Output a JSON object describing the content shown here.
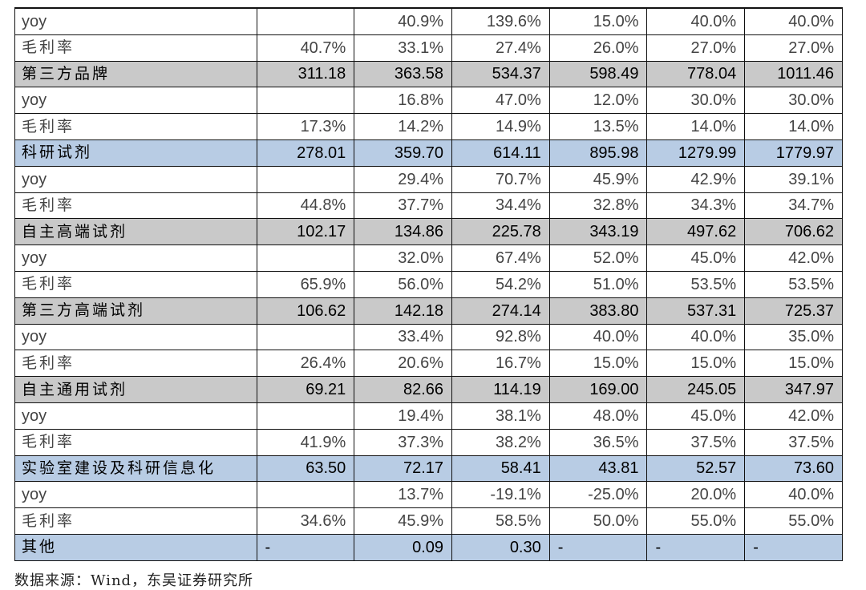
{
  "rows": [
    {
      "type": "sub",
      "label": "yoy",
      "cjk": false,
      "cells": [
        "",
        "40.9%",
        "139.6%",
        "15.0%",
        "40.0%",
        "40.0%"
      ]
    },
    {
      "type": "sub",
      "label": "毛利率",
      "cjk": true,
      "cells": [
        "40.7%",
        "33.1%",
        "27.4%",
        "26.0%",
        "27.0%",
        "27.0%"
      ]
    },
    {
      "type": "cat",
      "style": "gray",
      "label": "第三方品牌",
      "cells": [
        "311.18",
        "363.58",
        "534.37",
        "598.49",
        "778.04",
        "1011.46"
      ]
    },
    {
      "type": "sub",
      "label": "yoy",
      "cjk": false,
      "cells": [
        "",
        "16.8%",
        "47.0%",
        "12.0%",
        "30.0%",
        "30.0%"
      ]
    },
    {
      "type": "sub",
      "label": "毛利率",
      "cjk": true,
      "cells": [
        "17.3%",
        "14.2%",
        "14.9%",
        "13.5%",
        "14.0%",
        "14.0%"
      ]
    },
    {
      "type": "cat",
      "style": "blue",
      "label": "科研试剂",
      "cells": [
        "278.01",
        "359.70",
        "614.11",
        "895.98",
        "1279.99",
        "1779.97"
      ]
    },
    {
      "type": "sub",
      "label": "yoy",
      "cjk": false,
      "cells": [
        "",
        "29.4%",
        "70.7%",
        "45.9%",
        "42.9%",
        "39.1%"
      ]
    },
    {
      "type": "sub",
      "label": "毛利率",
      "cjk": true,
      "cells": [
        "44.8%",
        "37.7%",
        "34.4%",
        "32.8%",
        "34.3%",
        "34.7%"
      ]
    },
    {
      "type": "cat",
      "style": "gray",
      "label": "自主高端试剂",
      "cells": [
        "102.17",
        "134.86",
        "225.78",
        "343.19",
        "497.62",
        "706.62"
      ]
    },
    {
      "type": "sub",
      "label": "yoy",
      "cjk": false,
      "cells": [
        "",
        "32.0%",
        "67.4%",
        "52.0%",
        "45.0%",
        "42.0%"
      ]
    },
    {
      "type": "sub",
      "label": "毛利率",
      "cjk": true,
      "cells": [
        "65.9%",
        "56.0%",
        "54.2%",
        "51.0%",
        "53.5%",
        "53.5%"
      ]
    },
    {
      "type": "cat",
      "style": "gray",
      "label": "第三方高端试剂",
      "cells": [
        "106.62",
        "142.18",
        "274.14",
        "383.80",
        "537.31",
        "725.37"
      ]
    },
    {
      "type": "sub",
      "label": "yoy",
      "cjk": false,
      "cells": [
        "",
        "33.4%",
        "92.8%",
        "40.0%",
        "40.0%",
        "35.0%"
      ]
    },
    {
      "type": "sub",
      "label": "毛利率",
      "cjk": true,
      "cells": [
        "26.4%",
        "20.6%",
        "16.7%",
        "15.0%",
        "15.0%",
        "15.0%"
      ]
    },
    {
      "type": "cat",
      "style": "gray",
      "label": "自主通用试剂",
      "cells": [
        "69.21",
        "82.66",
        "114.19",
        "169.00",
        "245.05",
        "347.97"
      ]
    },
    {
      "type": "sub",
      "label": "yoy",
      "cjk": false,
      "cells": [
        "",
        "19.4%",
        "38.1%",
        "48.0%",
        "45.0%",
        "42.0%"
      ]
    },
    {
      "type": "sub",
      "label": "毛利率",
      "cjk": true,
      "cells": [
        "41.9%",
        "37.3%",
        "38.2%",
        "36.5%",
        "37.5%",
        "37.5%"
      ]
    },
    {
      "type": "cat",
      "style": "blue",
      "label": "实验室建设及科研信息化",
      "cells": [
        "63.50",
        "72.17",
        "58.41",
        "43.81",
        "52.57",
        "73.60"
      ]
    },
    {
      "type": "sub",
      "label": "yoy",
      "cjk": false,
      "cells": [
        "",
        "13.7%",
        "-19.1%",
        "-25.0%",
        "20.0%",
        "40.0%"
      ]
    },
    {
      "type": "sub",
      "label": "毛利率",
      "cjk": true,
      "cells": [
        "34.6%",
        "45.9%",
        "58.5%",
        "50.0%",
        "55.0%",
        "55.0%"
      ]
    },
    {
      "type": "cat",
      "style": "blue",
      "label": "其他",
      "cells": [
        "-",
        "0.09",
        "0.30",
        "-",
        "-",
        "-"
      ]
    }
  ],
  "source_note": "数据来源：Wind，东吴证券研究所"
}
